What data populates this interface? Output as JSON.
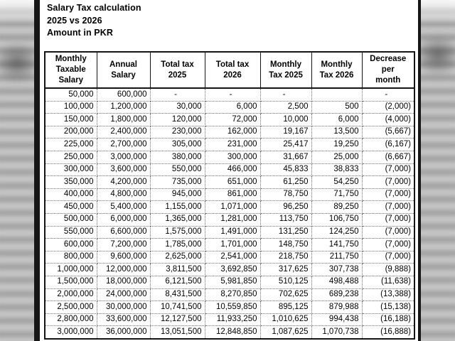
{
  "page": {
    "title_lines": [
      "Salary Tax calculation",
      "2025 vs 2026",
      "Amount in PKR"
    ]
  },
  "table": {
    "headers": [
      "Monthly\nTaxable\nSalary",
      "Annual\nSalary",
      "Total tax\n2025",
      "Total tax\n2026",
      "Monthly\nTax 2025",
      "Monthly\nTax 2026",
      "Decrease\nper\nmonth"
    ],
    "rows": [
      [
        "50,000",
        "600,000",
        "-",
        "-",
        "-",
        "",
        "-"
      ],
      [
        "100,000",
        "1,200,000",
        "30,000",
        "6,000",
        "2,500",
        "500",
        "(2,000)"
      ],
      [
        "150,000",
        "1,800,000",
        "120,000",
        "72,000",
        "10,000",
        "6,000",
        "(4,000)"
      ],
      [
        "200,000",
        "2,400,000",
        "230,000",
        "162,000",
        "19,167",
        "13,500",
        "(5,667)"
      ],
      [
        "225,000",
        "2,700,000",
        "305,000",
        "231,000",
        "25,417",
        "19,250",
        "(6,167)"
      ],
      [
        "250,000",
        "3,000,000",
        "380,000",
        "300,000",
        "31,667",
        "25,000",
        "(6,667)"
      ],
      [
        "300,000",
        "3,600,000",
        "550,000",
        "466,000",
        "45,833",
        "38,833",
        "(7,000)"
      ],
      [
        "350,000",
        "4,200,000",
        "735,000",
        "651,000",
        "61,250",
        "54,250",
        "(7,000)"
      ],
      [
        "400,000",
        "4,800,000",
        "945,000",
        "861,000",
        "78,750",
        "71,750",
        "(7,000)"
      ],
      [
        "450,000",
        "5,400,000",
        "1,155,000",
        "1,071,000",
        "96,250",
        "89,250",
        "(7,000)"
      ],
      [
        "500,000",
        "6,000,000",
        "1,365,000",
        "1,281,000",
        "113,750",
        "106,750",
        "(7,000)"
      ],
      [
        "550,000",
        "6,600,000",
        "1,575,000",
        "1,491,000",
        "131,250",
        "124,250",
        "(7,000)"
      ],
      [
        "600,000",
        "7,200,000",
        "1,785,000",
        "1,701,000",
        "148,750",
        "141,750",
        "(7,000)"
      ],
      [
        "800,000",
        "9,600,000",
        "2,625,000",
        "2,541,000",
        "218,750",
        "211,750",
        "(7,000)"
      ],
      [
        "1,000,000",
        "12,000,000",
        "3,811,500",
        "3,692,850",
        "317,625",
        "307,738",
        "(9,888)"
      ],
      [
        "1,500,000",
        "18,000,000",
        "6,121,500",
        "5,981,850",
        "510,125",
        "498,488",
        "(11,638)"
      ],
      [
        "2,000,000",
        "24,000,000",
        "8,431,500",
        "8,270,850",
        "702,625",
        "689,238",
        "(13,388)"
      ],
      [
        "2,500,000",
        "30,000,000",
        "10,741,500",
        "10,559,850",
        "895,125",
        "879,988",
        "(15,138)"
      ],
      [
        "2,800,000",
        "33,600,000",
        "12,127,500",
        "11,933,250",
        "1,010,625",
        "994,438",
        "(16,188)"
      ],
      [
        "3,000,000",
        "36,000,000",
        "13,051,500",
        "12,848,850",
        "1,087,625",
        "1,070,738",
        "(16,888)"
      ]
    ]
  },
  "colors": {
    "text": "#000000",
    "border": "#141414",
    "grid": "#6f6f6f",
    "margin_gray": "#c9c9c9",
    "dark_bar": "#161616"
  }
}
